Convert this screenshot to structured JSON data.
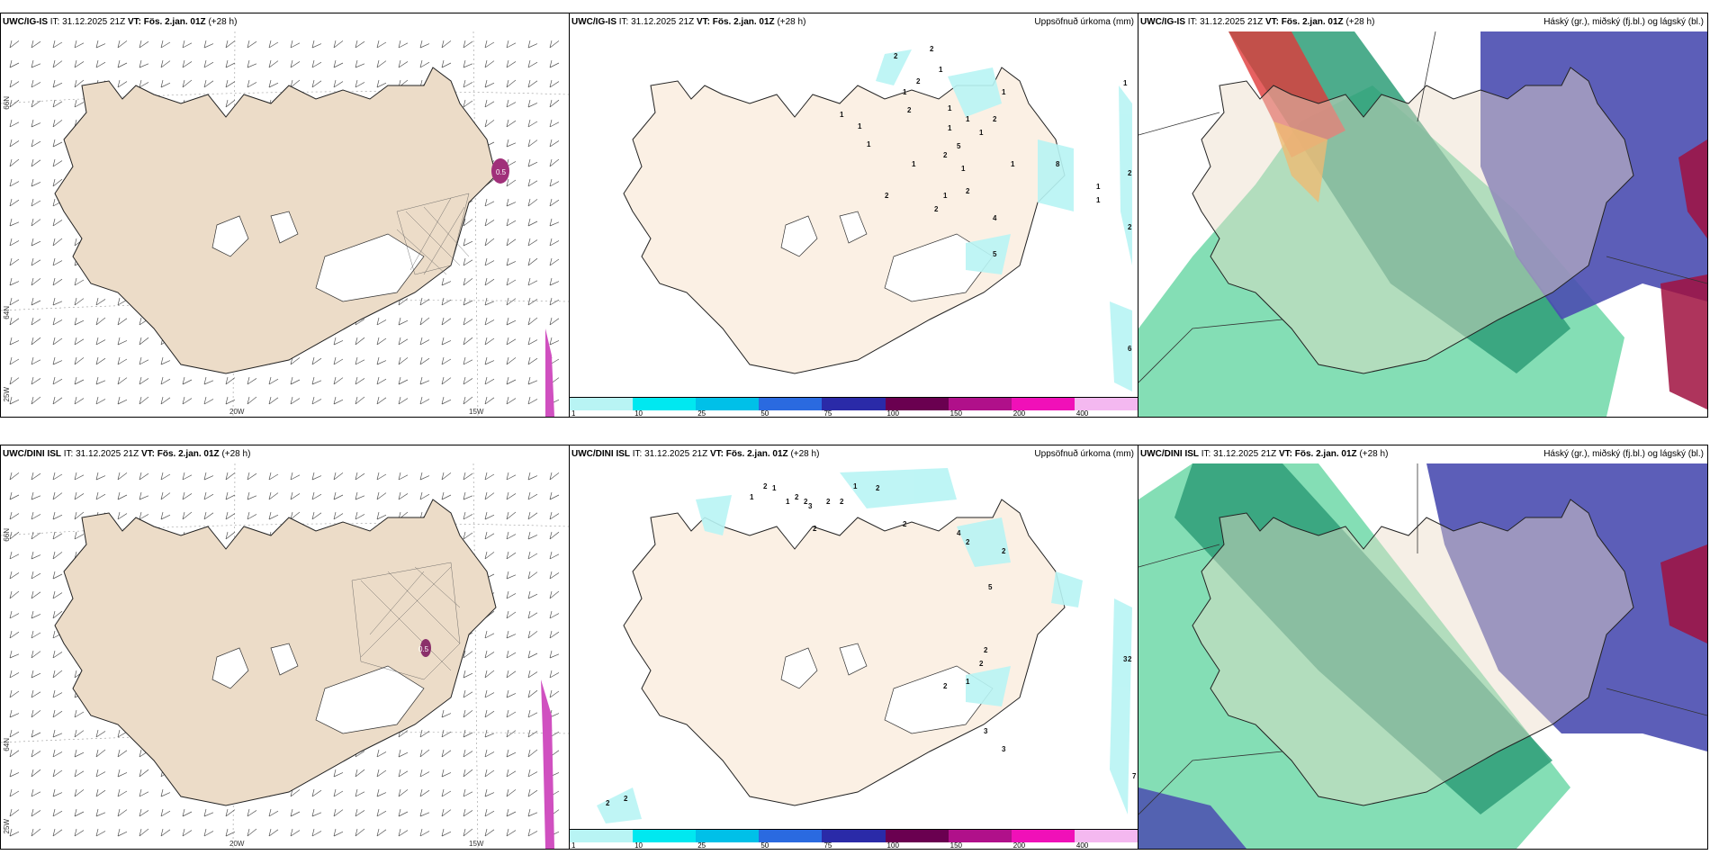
{
  "panels": [
    {
      "model": "UWC/IG-IS",
      "init": "IT: 31.12.2025 21Z",
      "valid": "VT: Fös. 2.jan. 01Z",
      "lead": "(+28 h)",
      "right": ""
    },
    {
      "model": "UWC/IG-IS",
      "init": "IT: 31.12.2025 21Z",
      "valid": "VT: Fös. 2.jan. 01Z",
      "lead": "(+28 h)",
      "right": "Uppsöfnuð úrkoma (mm)"
    },
    {
      "model": "UWC/IG-IS",
      "init": "IT: 31.12.2025 21Z",
      "valid": "VT: Fös. 2.jan. 01Z",
      "lead": "(+28 h)",
      "right": "Háský (gr.), miðský (fj.bl.) og lágský (bl.)"
    },
    {
      "model": "UWC/DINI ISL",
      "init": "IT: 31.12.2025 21Z",
      "valid": "VT: Fös. 2.jan. 01Z",
      "lead": "(+28 h)",
      "right": ""
    },
    {
      "model": "UWC/DINI ISL",
      "init": "IT: 31.12.2025 21Z",
      "valid": "VT: Fös. 2.jan. 01Z",
      "lead": "(+28 h)",
      "right": "Uppsöfnuð úrkoma (mm)"
    },
    {
      "model": "UWC/DINI ISL",
      "init": "IT: 31.12.2025 21Z",
      "valid": "VT: Fös. 2.jan. 01Z",
      "lead": "(+28 h)",
      "right": "Háský (gr.), miðský (fj.bl.) og lágský (bl.)"
    }
  ],
  "axis_labels": {
    "lat66": "66N",
    "lat64": "64N",
    "lon25": "25W",
    "lon20": "20W",
    "lon15": "15W"
  },
  "colorbar": {
    "ticks": [
      "1",
      "10",
      "25",
      "50",
      "75",
      "100",
      "150",
      "200",
      "400"
    ],
    "colors": [
      "#b8f4f4",
      "#00e8f0",
      "#00c0e8",
      "#2a6ae0",
      "#2a2aa8",
      "#6a0050",
      "#b0108a",
      "#f010b8",
      "#f4b8f0"
    ]
  },
  "precip_labels_top": [
    "2",
    "2",
    "1",
    "1",
    "2",
    "2",
    "1",
    "1",
    "1",
    "1",
    "1",
    "2",
    "1",
    "2",
    "2",
    "5",
    "1",
    "1",
    "2",
    "1",
    "2",
    "1",
    "1",
    "1",
    "4",
    "5",
    "8",
    "1",
    "1",
    "2",
    "2",
    "6",
    "1"
  ],
  "precip_labels_bottom": [
    "1",
    "2",
    "1",
    "2",
    "2",
    "1",
    "2",
    "1",
    "2",
    "3",
    "2",
    "2",
    "2",
    "4",
    "2",
    "5",
    "2",
    "2",
    "2",
    "1",
    "2",
    "3",
    "3",
    "3",
    "7",
    "2",
    "2",
    "2"
  ],
  "overlay_labels": {
    "top": "0.5",
    "bottom": "0.5"
  }
}
